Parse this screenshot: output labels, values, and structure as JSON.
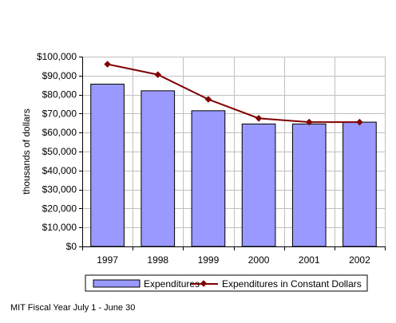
{
  "chart_data": {
    "type": "bar",
    "categories": [
      "1997",
      "1998",
      "1999",
      "2000",
      "2001",
      "2002"
    ],
    "ylabel": "thousands of dollars",
    "ylim": [
      0,
      100000
    ],
    "ytick_step": 10000,
    "ytick_labels": [
      "$0",
      "$10,000",
      "$20,000",
      "$30,000",
      "$40,000",
      "$50,000",
      "$60,000",
      "$70,000",
      "$80,000",
      "$90,000",
      "$100,000"
    ],
    "grid": true,
    "legend_position": "bottom",
    "series": [
      {
        "name": "Expenditures",
        "type": "bar",
        "color": "#9999ff",
        "values": [
          85500,
          82000,
          71500,
          64500,
          64500,
          65500
        ]
      },
      {
        "name": "Expenditures in Constant Dollars",
        "type": "line",
        "color": "#800000",
        "values": [
          96000,
          90500,
          77500,
          67500,
          65500,
          65500
        ]
      }
    ]
  },
  "footnote": "MIT Fiscal Year July 1 - June 30"
}
